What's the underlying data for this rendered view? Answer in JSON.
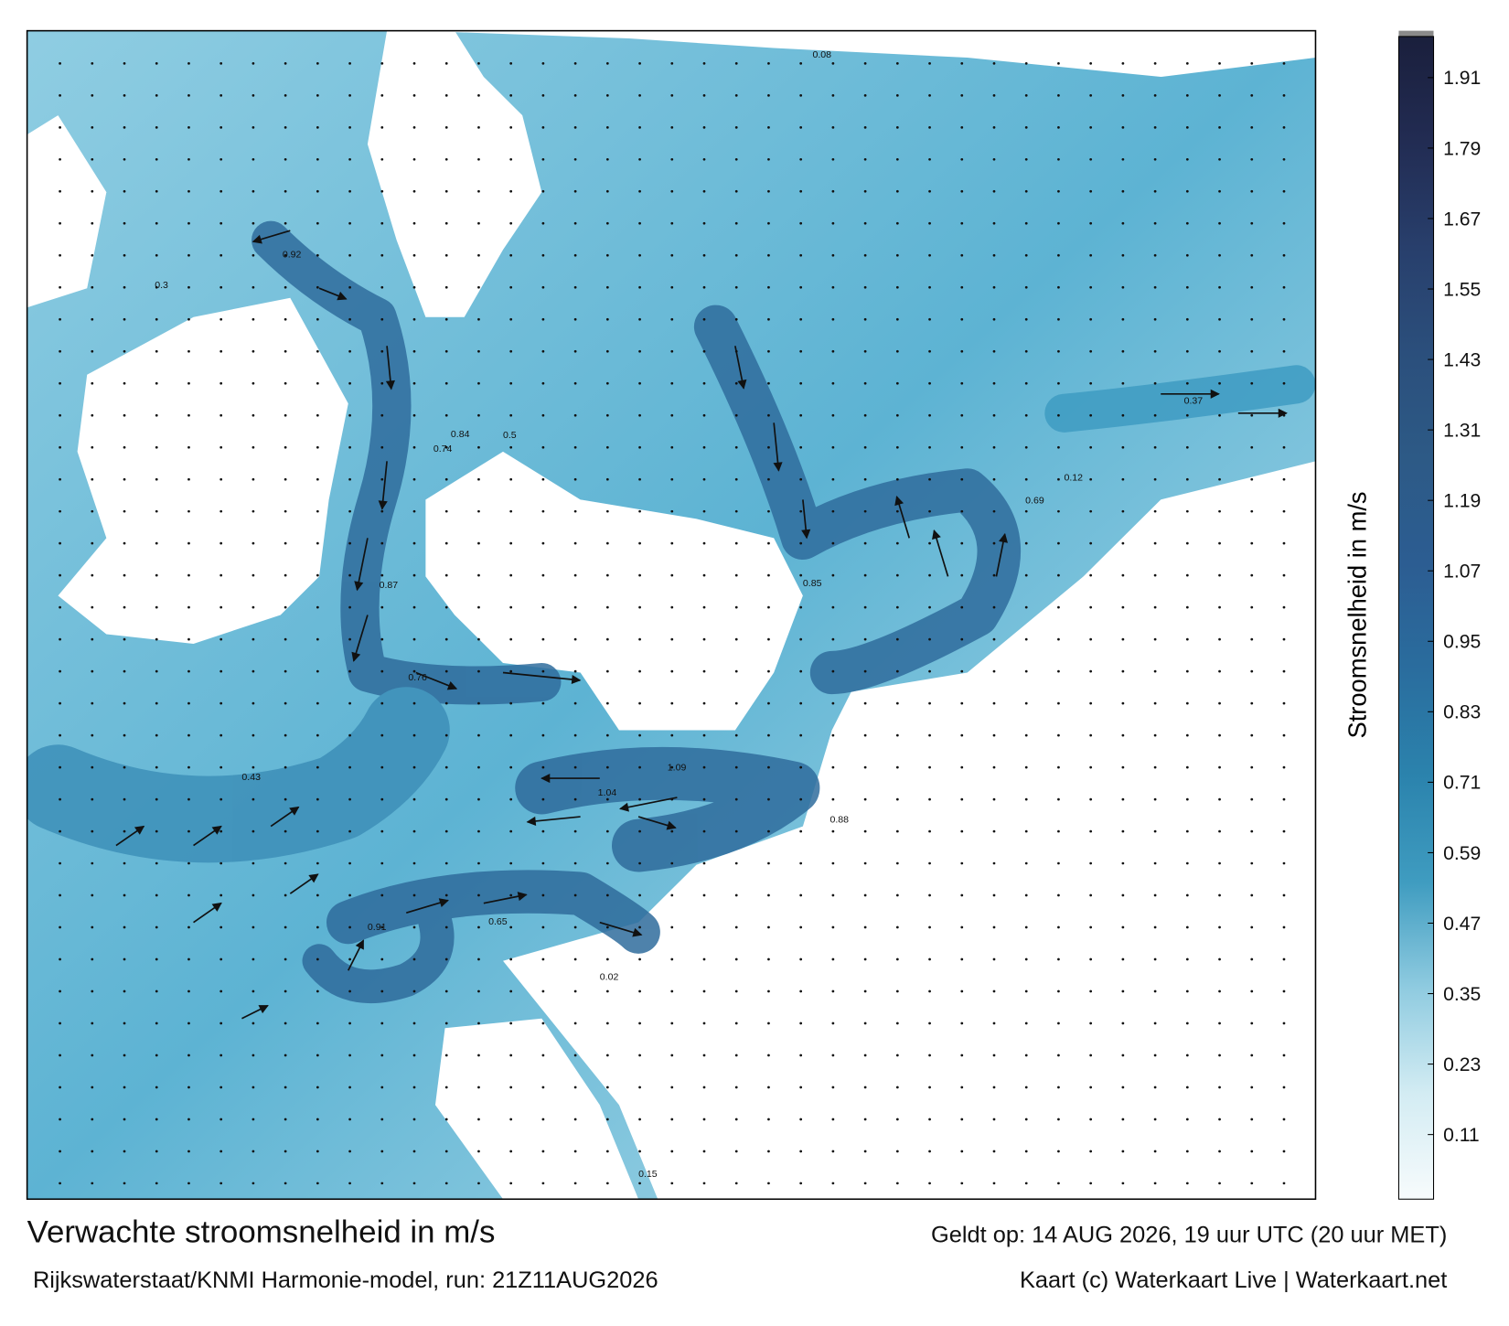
{
  "map": {
    "colorbar": {
      "label": "Stroomsnelheid in m/s",
      "lim": [
        0,
        1.98
      ],
      "ticks": [
        0.11,
        0.23,
        0.35,
        0.47,
        0.59,
        0.71,
        0.83,
        0.95,
        1.07,
        1.19,
        1.31,
        1.43,
        1.55,
        1.67,
        1.79,
        1.91
      ],
      "colors": [
        "#f7fbfc",
        "#d3ecf3",
        "#8fcbe0",
        "#3f9cc0",
        "#2b83ad",
        "#2a6d9e",
        "#2c5d92",
        "#2d5a86",
        "#2b4f7c",
        "#283f6c",
        "#222c53",
        "#1a1f3c"
      ]
    },
    "labels": [
      "0.92",
      "0.74",
      "1.09",
      "1.04",
      "0.88",
      "0.91",
      "0.85",
      "0.87",
      "0.84",
      "0.76",
      "0.69",
      "0.65",
      "0.43",
      "0.37",
      "0.5",
      "0.3",
      "0.12",
      "0.15",
      "0.08",
      "0.02"
    ]
  },
  "footer": {
    "title": "Verwachte stroomsnelheid in m/s",
    "valid": "Geldt op: 14 AUG 2026, 19 uur UTC (20 uur MET)",
    "model": "Rijkswaterstaat/KNMI Harmonie-model, run: 21Z11AUG2026",
    "credit": "Kaart (c) Waterkaart Live | Waterkaart.net"
  }
}
